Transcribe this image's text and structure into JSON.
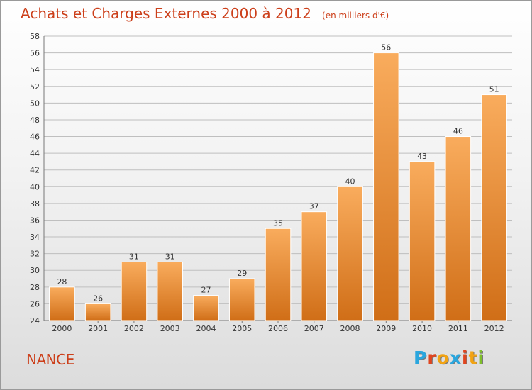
{
  "header": {
    "title": "Achats et Charges Externes 2000 à 2012",
    "unit": "(en milliers d'€)"
  },
  "footer": {
    "commune": "NANCE",
    "logo": {
      "text": "Proxiti",
      "letter_colors": [
        "#2aa6de",
        "#e0451f",
        "#f2a313",
        "#2aa6de",
        "#e0451f",
        "#f2a313",
        "#7fbf2a"
      ]
    }
  },
  "colors": {
    "bar_top": "#f9ac5d",
    "bar_bottom": "#d06e17",
    "grid": "#bfbfbf",
    "text": "#333333"
  },
  "chart_data": {
    "type": "bar",
    "categories": [
      "2000",
      "2001",
      "2002",
      "2003",
      "2004",
      "2005",
      "2006",
      "2007",
      "2008",
      "2009",
      "2010",
      "2011",
      "2012"
    ],
    "values": [
      28,
      26,
      31,
      31,
      27,
      29,
      35,
      37,
      40,
      56,
      43,
      46,
      51
    ],
    "data_labels": [
      "28",
      "26",
      "31",
      "31",
      "27",
      "29",
      "35",
      "37",
      "40",
      "56",
      "43",
      "46",
      "51"
    ],
    "ylim": [
      24,
      58
    ],
    "ytick_step": 2,
    "ytick_labels": [
      "24",
      "26",
      "28",
      "30",
      "32",
      "34",
      "36",
      "38",
      "40",
      "42",
      "44",
      "46",
      "48",
      "50",
      "52",
      "54",
      "56",
      "58"
    ],
    "grid": true,
    "legend": false
  }
}
